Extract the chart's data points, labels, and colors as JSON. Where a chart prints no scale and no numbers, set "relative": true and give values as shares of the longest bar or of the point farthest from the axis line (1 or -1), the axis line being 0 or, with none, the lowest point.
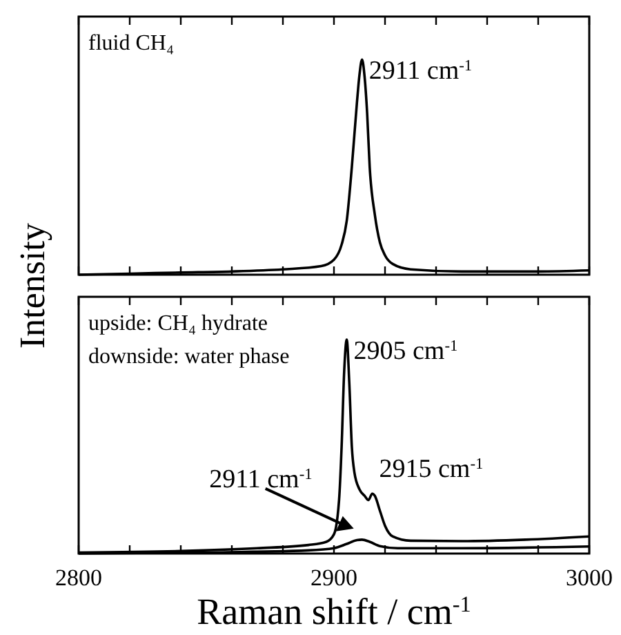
{
  "chart_data": [
    {
      "type": "line",
      "relative": true,
      "xlim": [
        2800,
        3000
      ],
      "xticks": [
        2800,
        {
          "value": 2820,
          "label": null
        },
        {
          "value": 2840,
          "label": null
        },
        {
          "value": 2860,
          "label": null
        },
        {
          "value": 2880,
          "label": null
        },
        2900,
        {
          "value": 2920,
          "label": null
        },
        {
          "value": 2940,
          "label": null
        },
        {
          "value": 2960,
          "label": null
        },
        {
          "value": 2980,
          "label": null
        },
        3000
      ],
      "tick_labels": false,
      "ylabel": "Intensity",
      "annotations": [
        "fluid CH₄",
        {
          "text": "2911 cm$^{-1}$",
          "x": 2911,
          "y": 1
        }
      ],
      "series": [
        {
          "color": "#000000",
          "x": [
            2800,
            2820,
            2840,
            2860,
            2880,
            2895,
            2900,
            2903,
            2905,
            2907,
            2909,
            2910,
            2911,
            2912,
            2913,
            2914,
            2916,
            2918,
            2920,
            2923,
            2930,
            2950,
            2980,
            3000
          ],
          "values": [
            0,
            0.005,
            0.01,
            0.015,
            0.025,
            0.04,
            0.07,
            0.14,
            0.25,
            0.5,
            0.8,
            0.93,
            1,
            0.92,
            0.75,
            0.5,
            0.28,
            0.15,
            0.09,
            0.05,
            0.025,
            0.015,
            0.015,
            0.02
          ]
        }
      ]
    },
    {
      "type": "line",
      "relative": true,
      "xlim": [
        2800,
        3000
      ],
      "xticks": [
        2800,
        {
          "value": 2820,
          "label": null
        },
        {
          "value": 2840,
          "label": null
        },
        {
          "value": 2860,
          "label": null
        },
        {
          "value": 2880,
          "label": null
        },
        2900,
        {
          "value": 2920,
          "label": null
        },
        {
          "value": 2940,
          "label": null
        },
        {
          "value": 2960,
          "label": null
        },
        {
          "value": 2980,
          "label": null
        },
        3000
      ],
      "tick_labels": "x",
      "xlabel": "Raman shift / cm$^{-1}$",
      "annotations": [
        "upside: CH₄ hydrate",
        "downside: water phase",
        {
          "text": "2905 cm$^{-1}$",
          "x": 2905,
          "y": 1
        },
        {
          "text": "2915 cm$^{-1}$",
          "x": 2915,
          "y": 0.28
        },
        {
          "text": "2911 cm$^{-1}$",
          "x": 2911,
          "y": 0.065
        }
      ],
      "series": [
        {
          "color": "#000000",
          "x": [
            2800,
            2840,
            2870,
            2890,
            2897,
            2900,
            2902,
            2903,
            2904,
            2905,
            2906,
            2907,
            2908,
            2910,
            2912,
            2913.5,
            2915,
            2916,
            2918,
            2920,
            2923,
            2930,
            2950,
            2975,
            3000
          ],
          "values": [
            0.005,
            0.012,
            0.025,
            0.04,
            0.055,
            0.09,
            0.25,
            0.5,
            0.85,
            1,
            0.8,
            0.5,
            0.38,
            0.3,
            0.27,
            0.25,
            0.28,
            0.27,
            0.2,
            0.13,
            0.08,
            0.06,
            0.058,
            0.065,
            0.08
          ]
        },
        {
          "color": "#000000",
          "x": [
            2800,
            2850,
            2890,
            2900,
            2905,
            2909,
            2911,
            2914,
            2918,
            2925,
            2950,
            3000
          ],
          "values": [
            0,
            0.005,
            0.015,
            0.025,
            0.045,
            0.063,
            0.065,
            0.055,
            0.035,
            0.025,
            0.025,
            0.033
          ]
        }
      ]
    }
  ]
}
